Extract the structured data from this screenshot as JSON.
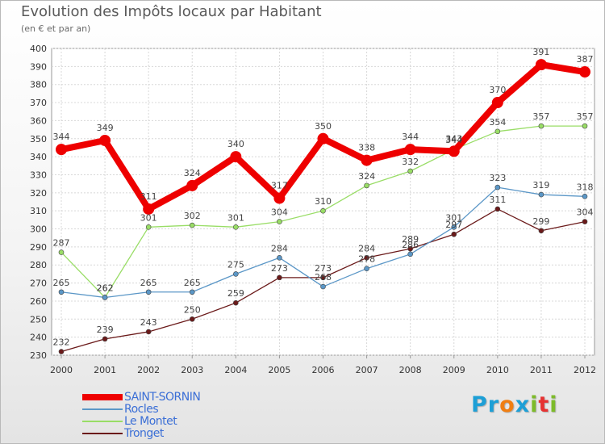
{
  "header": {
    "title": "Evolution des Impôts locaux par Habitant",
    "subtitle": "(en € et par an)"
  },
  "logo": {
    "text": "Proxiti",
    "letters": [
      {
        "ch": "P",
        "color": "#1d9fd6"
      },
      {
        "ch": "r",
        "color": "#1d9fd6"
      },
      {
        "ch": "o",
        "color": "#f07e12"
      },
      {
        "ch": "x",
        "color": "#1d9fd6"
      },
      {
        "ch": "i",
        "color": "#7dbb2a"
      },
      {
        "ch": "t",
        "color": "#e63232"
      },
      {
        "ch": "i",
        "color": "#7dbb2a"
      }
    ]
  },
  "chart_data": {
    "type": "line",
    "title": "Evolution des Impôts locaux par Habitant",
    "subtitle": "(en € et par an)",
    "xlabel": "",
    "ylabel": "",
    "x": [
      "2000",
      "2001",
      "2002",
      "2003",
      "2004",
      "2005",
      "2006",
      "2007",
      "2008",
      "2009",
      "2010",
      "2011",
      "2012"
    ],
    "ylim": [
      230,
      400
    ],
    "yticks": [
      230,
      240,
      250,
      260,
      270,
      280,
      290,
      300,
      310,
      320,
      330,
      340,
      350,
      360,
      370,
      380,
      390,
      400
    ],
    "grid": true,
    "legend_position": "bottom-left",
    "series": [
      {
        "name": "SAINT-SORNIN",
        "color": "#ee0000",
        "values": [
          344,
          349,
          311,
          324,
          340,
          317,
          350,
          338,
          344,
          343,
          370,
          391,
          387
        ],
        "labels": true
      },
      {
        "name": "Rocles",
        "color": "#5b97c7",
        "values": [
          265,
          262,
          265,
          265,
          275,
          284,
          268,
          278,
          286,
          301,
          323,
          319,
          318
        ],
        "labels": true
      },
      {
        "name": "Le Montet",
        "color": "#99dd66",
        "values": [
          287,
          262,
          301,
          302,
          301,
          304,
          310,
          324,
          332,
          344,
          354,
          357,
          357
        ],
        "labels": true
      },
      {
        "name": "Tronget",
        "color": "#6b1a1a",
        "values": [
          232,
          239,
          243,
          250,
          259,
          273,
          273,
          284,
          289,
          297,
          311,
          299,
          304
        ],
        "labels": true
      }
    ]
  }
}
